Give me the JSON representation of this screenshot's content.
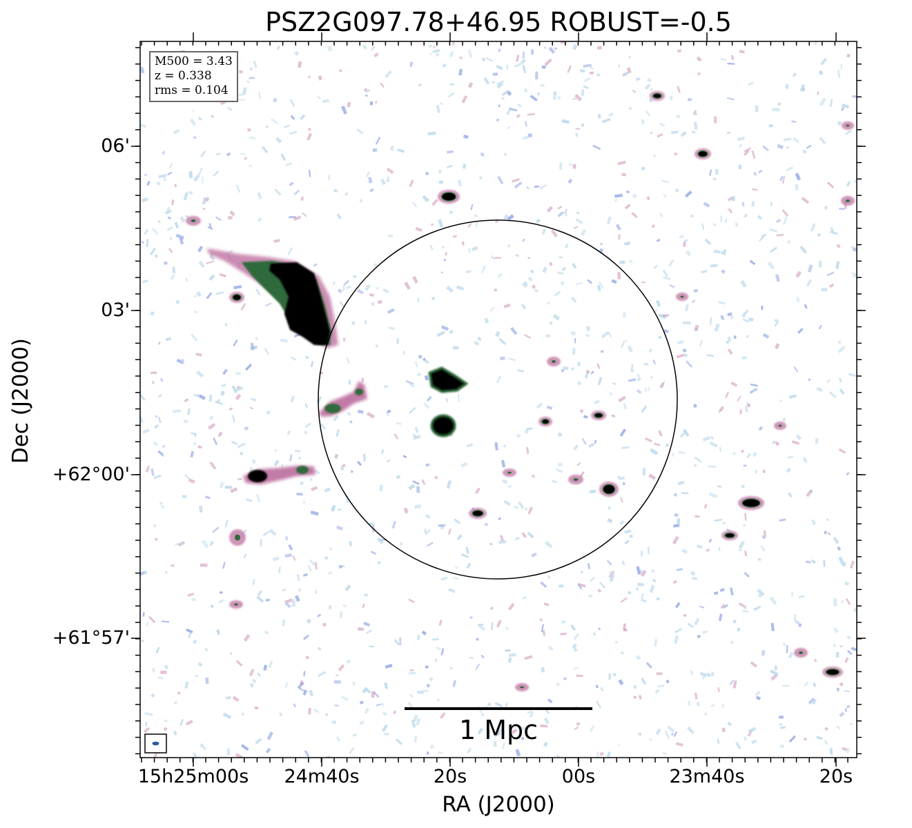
{
  "title": "PSZ2G097.78+46.95 ROBUST=-0.5",
  "info_box": {
    "m500": "M500 = 3.43",
    "redshift": "z = 0.338",
    "rms": "rms = 0.104"
  },
  "axes": {
    "xlabel": "RA (J2000)",
    "ylabel": "Dec (J2000)",
    "x_ticks": [
      "15h25m00s",
      "24m40s",
      "20s",
      "00s",
      "23m40s",
      "20s"
    ],
    "y_ticks": [
      "06'",
      "03'",
      "+62°00'",
      "+61°57'"
    ]
  },
  "scale_bar": {
    "label": "1 Mpc"
  },
  "colors": {
    "strong_emission": "#000000",
    "bright_edge": "#2f6b3a",
    "mid_emission": "#c27aa6",
    "faint_emission": "#9fb1e6",
    "noise": "#c2dcec",
    "beam": "#2b5d9e"
  }
}
